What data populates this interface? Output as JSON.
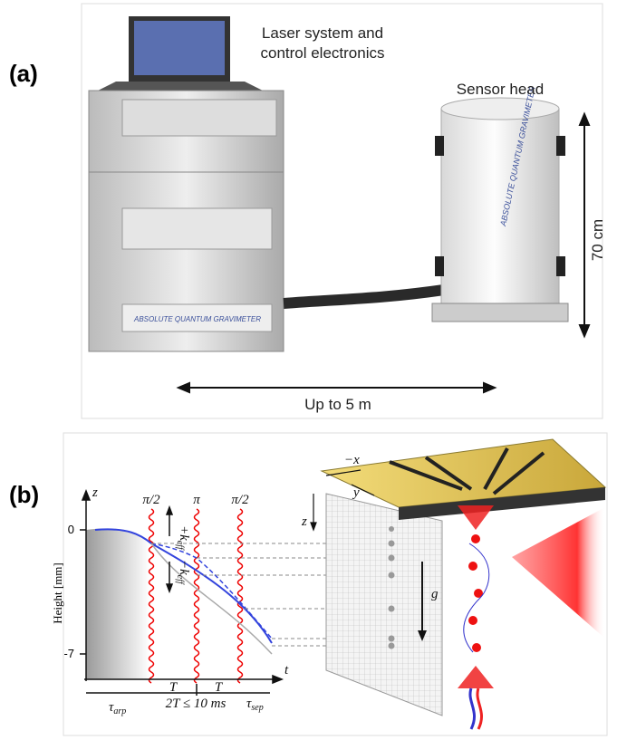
{
  "panel_a": {
    "label": "(a)",
    "laser_label": [
      "Laser system and",
      "control electronics"
    ],
    "sensor_label": "Sensor head",
    "height_label": "70 cm",
    "distance_label": "Up to 5 m"
  },
  "panel_b": {
    "label": "(b)",
    "axis": {
      "z": "z",
      "t": "t",
      "y_top": "0",
      "y_bottom": "-7",
      "y_label": "Height [mm]"
    },
    "pulses": [
      "π/2",
      "π",
      "π/2"
    ],
    "k_up": {
      "sign": "+k",
      "sub": "eff"
    },
    "k_down": {
      "sign": "−k",
      "sub": "eff"
    },
    "timing": {
      "arp": {
        "symbol": "τ",
        "sub": "arp"
      },
      "T1": "T",
      "T2": "T",
      "constraint": "2T ≤ 10 ms",
      "sep": {
        "symbol": "τ",
        "sub": "sep"
      }
    },
    "chip_axes": {
      "x": "−x",
      "y": "y",
      "z": "z"
    },
    "gravity": "g"
  }
}
